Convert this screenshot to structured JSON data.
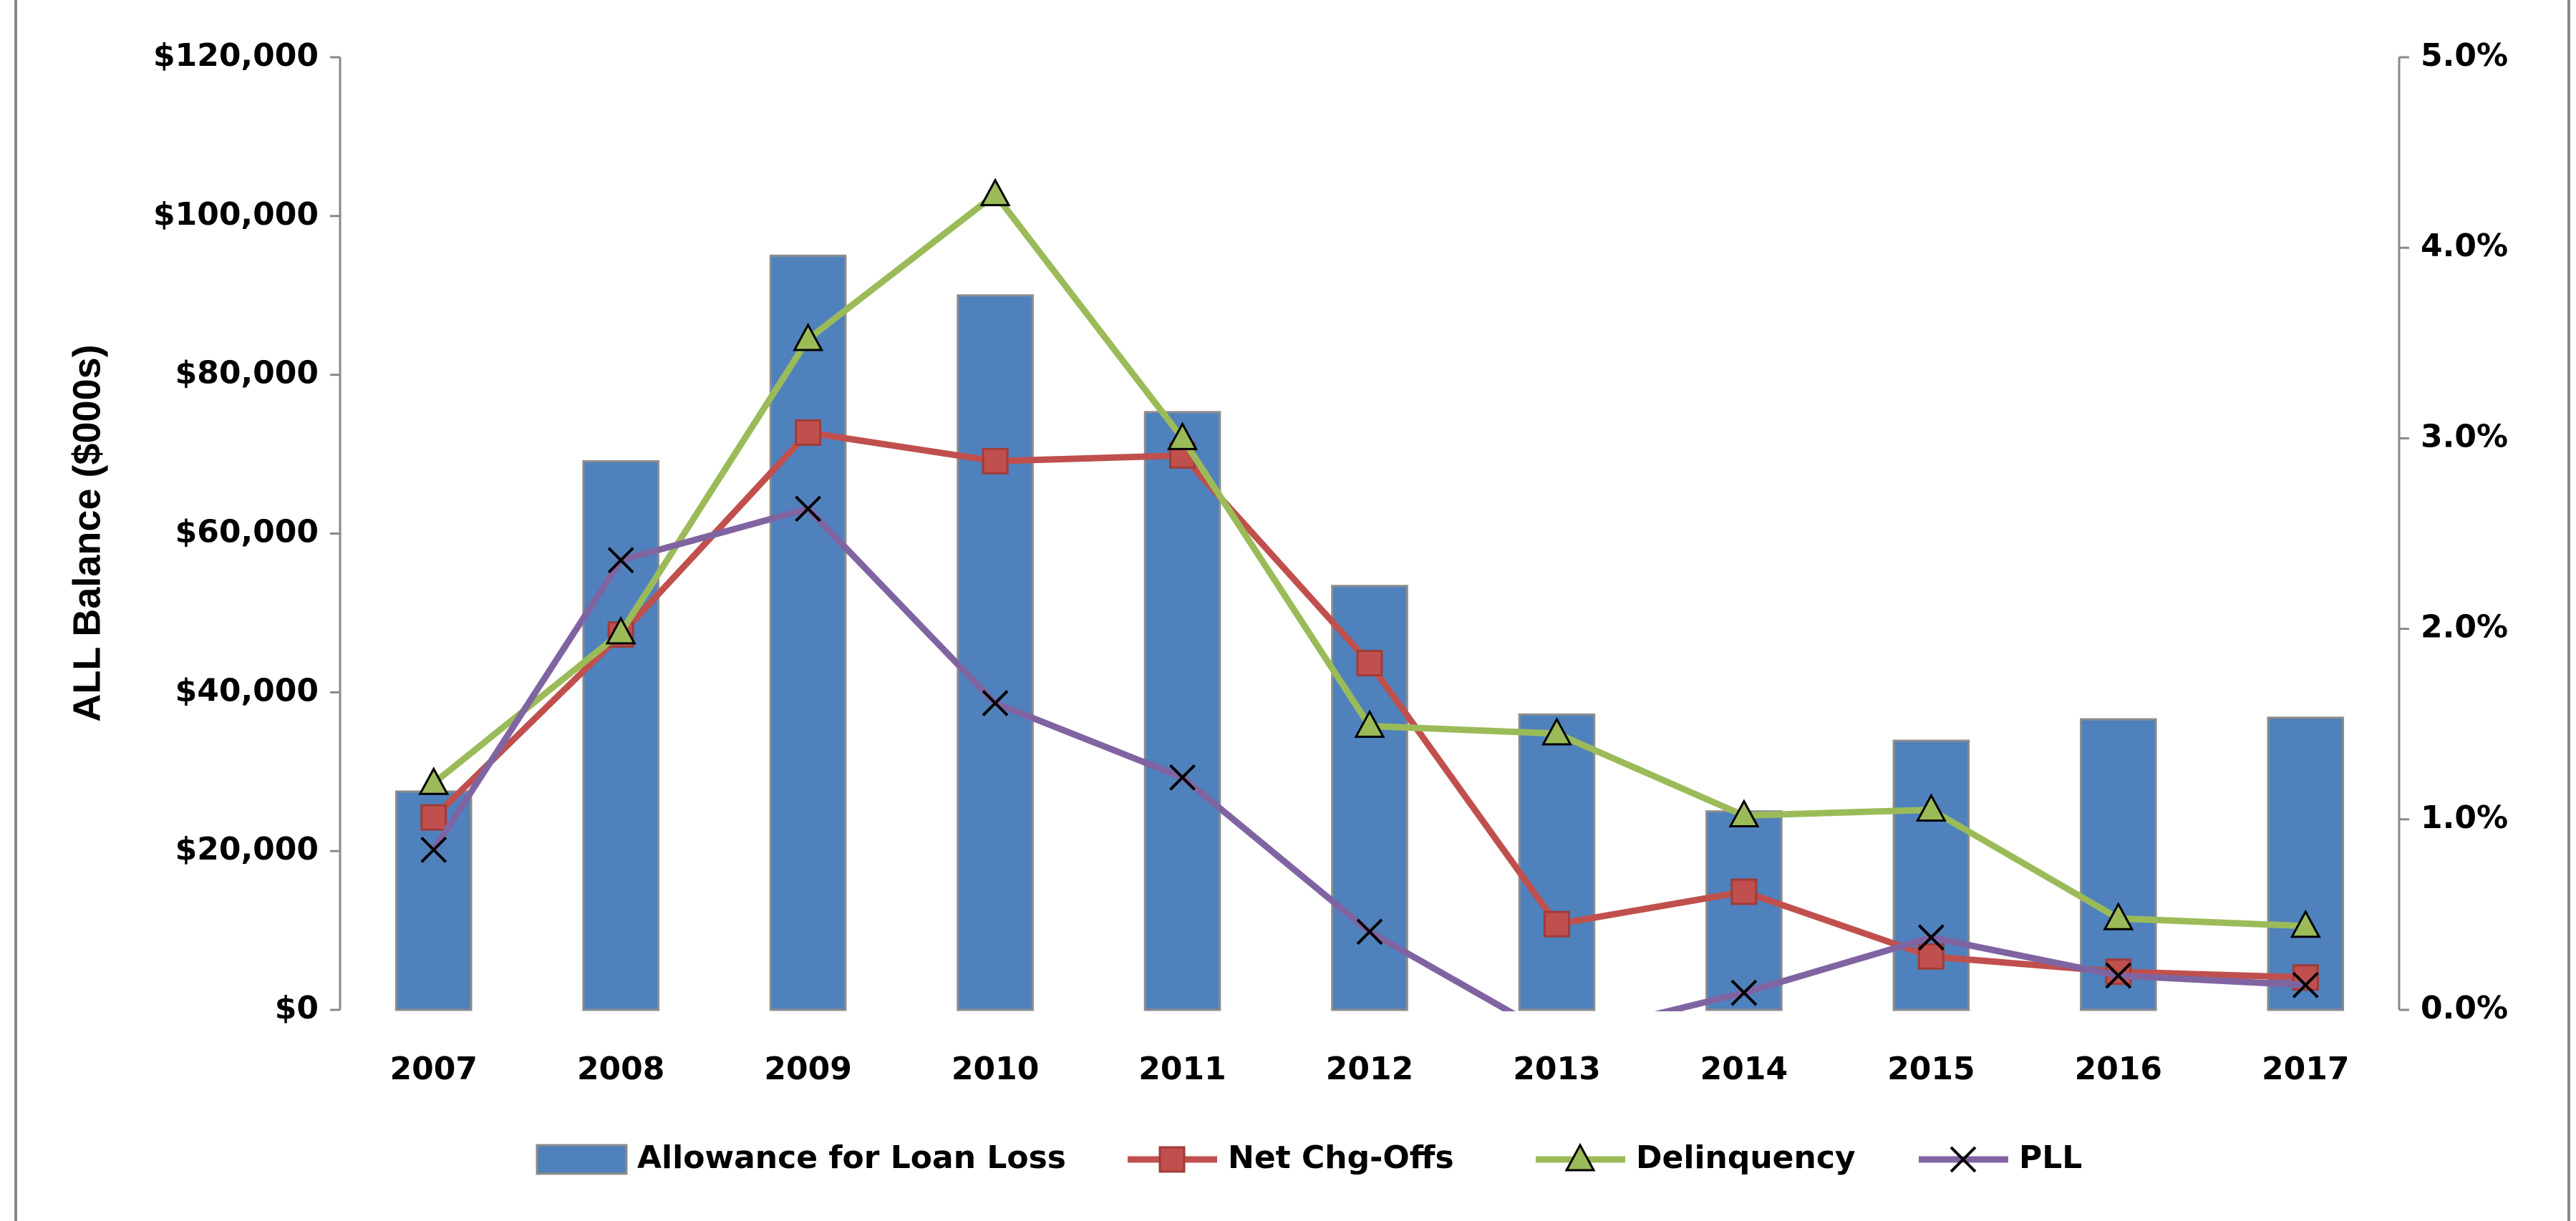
{
  "chart_data": {
    "type": "bar_line",
    "y_axis_label": "ALL Balance ($000s)",
    "categories": [
      "2007",
      "2008",
      "2009",
      "2010",
      "2011",
      "2012",
      "2013",
      "2014",
      "2015",
      "2016",
      "2017"
    ],
    "series": [
      {
        "name": "Allowance for Loan Loss",
        "type": "bar",
        "axis": "y",
        "color": "#4f81bd",
        "values": [
          27500,
          69100,
          95000,
          90000,
          75300,
          53400,
          37200,
          25000,
          33900,
          36600,
          36800
        ]
      },
      {
        "name": "Net Chg-Offs",
        "type": "line",
        "marker": "square",
        "axis": "y2",
        "color": "#c0504d",
        "values": [
          1.01,
          1.97,
          3.03,
          2.88,
          2.91,
          1.82,
          0.45,
          0.62,
          0.28,
          0.2,
          0.17
        ]
      },
      {
        "name": "Delinquency",
        "type": "line",
        "marker": "triangle",
        "axis": "y2",
        "color": "#9bbb59",
        "values": [
          1.19,
          1.98,
          3.52,
          4.28,
          3.0,
          1.49,
          1.45,
          1.02,
          1.05,
          0.48,
          0.44
        ]
      },
      {
        "name": "PLL",
        "type": "line",
        "marker": "x",
        "axis": "y2",
        "color": "#8064a2",
        "values": [
          0.84,
          2.36,
          2.63,
          1.61,
          1.22,
          0.41,
          -0.15,
          0.09,
          0.38,
          0.18,
          0.13
        ]
      }
    ],
    "ylim": [
      0,
      120000
    ],
    "yticks": [
      {
        "value": 0,
        "label": "$0"
      },
      {
        "value": 20000,
        "label": "$20,000"
      },
      {
        "value": 40000,
        "label": "$40,000"
      },
      {
        "value": 60000,
        "label": "$60,000"
      },
      {
        "value": 80000,
        "label": "$80,000"
      },
      {
        "value": 100000,
        "label": "$100,000"
      },
      {
        "value": 120000,
        "label": "$120,000"
      }
    ],
    "y2lim": [
      0,
      5
    ],
    "y2ticks": [
      {
        "value": 0,
        "label": "0.0%"
      },
      {
        "value": 1,
        "label": "1.0%"
      },
      {
        "value": 2,
        "label": "2.0%"
      },
      {
        "value": 3,
        "label": "3.0%"
      },
      {
        "value": 4,
        "label": "4.0%"
      },
      {
        "value": 5,
        "label": "5.0%"
      }
    ],
    "legend": "bottom"
  }
}
